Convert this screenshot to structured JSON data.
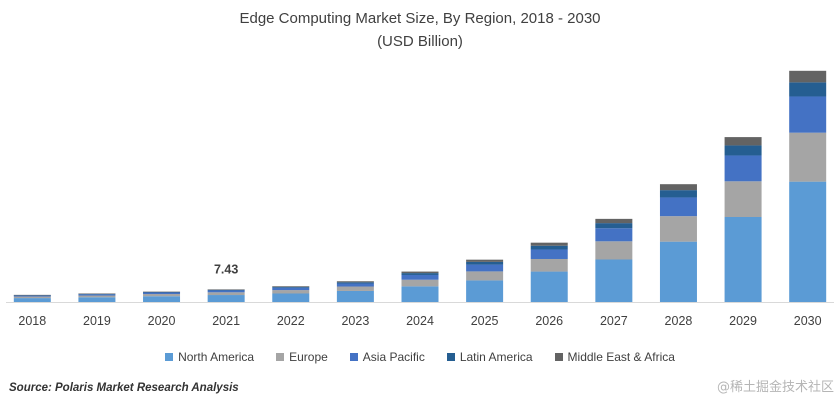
{
  "chart_data": {
    "type": "stacked-bar",
    "title": "Edge Computing Market Size, By Region, 2018 - 2030",
    "subtitle": "(USD Billion)",
    "categories": [
      "2018",
      "2019",
      "2020",
      "2021",
      "2022",
      "2023",
      "2024",
      "2025",
      "2026",
      "2027",
      "2028",
      "2029",
      "2030"
    ],
    "series": [
      {
        "name": "North America",
        "color": "#5b9bd5",
        "values": [
          2.3,
          2.8,
          3.4,
          4.1,
          5.0,
          6.5,
          9.2,
          12.7,
          17.9,
          25.0,
          35.5,
          50.0,
          70.8
        ]
      },
      {
        "name": "Europe",
        "color": "#a5a5a5",
        "values": [
          0.9,
          1.0,
          1.3,
          1.6,
          2.0,
          2.6,
          3.9,
          5.3,
          7.4,
          10.7,
          15.0,
          21.0,
          28.8
        ]
      },
      {
        "name": "Asia Pacific",
        "color": "#4472c4",
        "values": [
          0.6,
          0.7,
          0.9,
          1.1,
          1.4,
          1.8,
          2.8,
          4.0,
          5.6,
          7.7,
          11.0,
          15.2,
          21.3
        ]
      },
      {
        "name": "Latin America",
        "color": "#255e91",
        "values": [
          0.2,
          0.3,
          0.3,
          0.4,
          0.5,
          0.7,
          1.1,
          1.6,
          2.2,
          3.0,
          4.3,
          5.9,
          8.3
        ]
      },
      {
        "name": "Middle East & Africa",
        "color": "#636363",
        "values": [
          0.2,
          0.2,
          0.2,
          0.23,
          0.4,
          0.6,
          0.9,
          1.3,
          1.8,
          2.5,
          3.5,
          4.9,
          6.8
        ]
      }
    ],
    "data_labels": [
      {
        "category": "2021",
        "text": "7.43"
      }
    ],
    "ylim": [
      0,
      140
    ],
    "legend": "bottom",
    "grid": false,
    "xlabel": "",
    "ylabel": ""
  },
  "source": "Source: Polaris  Market Research Analysis",
  "watermark": "@稀土掘金技术社区"
}
